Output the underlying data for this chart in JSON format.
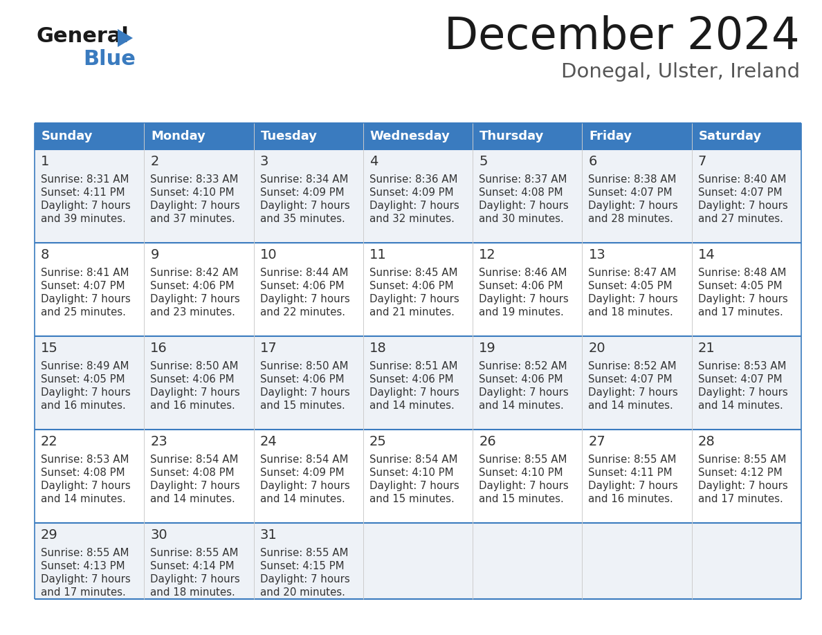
{
  "title": "December 2024",
  "subtitle": "Donegal, Ulster, Ireland",
  "header_color": "#3a7bbf",
  "header_text_color": "#ffffff",
  "days_of_week": [
    "Sunday",
    "Monday",
    "Tuesday",
    "Wednesday",
    "Thursday",
    "Friday",
    "Saturday"
  ],
  "weeks": [
    [
      {
        "day": 1,
        "sunrise": "8:31 AM",
        "sunset": "4:11 PM",
        "daylight_hours": 7,
        "daylight_minutes": 39
      },
      {
        "day": 2,
        "sunrise": "8:33 AM",
        "sunset": "4:10 PM",
        "daylight_hours": 7,
        "daylight_minutes": 37
      },
      {
        "day": 3,
        "sunrise": "8:34 AM",
        "sunset": "4:09 PM",
        "daylight_hours": 7,
        "daylight_minutes": 35
      },
      {
        "day": 4,
        "sunrise": "8:36 AM",
        "sunset": "4:09 PM",
        "daylight_hours": 7,
        "daylight_minutes": 32
      },
      {
        "day": 5,
        "sunrise": "8:37 AM",
        "sunset": "4:08 PM",
        "daylight_hours": 7,
        "daylight_minutes": 30
      },
      {
        "day": 6,
        "sunrise": "8:38 AM",
        "sunset": "4:07 PM",
        "daylight_hours": 7,
        "daylight_minutes": 28
      },
      {
        "day": 7,
        "sunrise": "8:40 AM",
        "sunset": "4:07 PM",
        "daylight_hours": 7,
        "daylight_minutes": 27
      }
    ],
    [
      {
        "day": 8,
        "sunrise": "8:41 AM",
        "sunset": "4:07 PM",
        "daylight_hours": 7,
        "daylight_minutes": 25
      },
      {
        "day": 9,
        "sunrise": "8:42 AM",
        "sunset": "4:06 PM",
        "daylight_hours": 7,
        "daylight_minutes": 23
      },
      {
        "day": 10,
        "sunrise": "8:44 AM",
        "sunset": "4:06 PM",
        "daylight_hours": 7,
        "daylight_minutes": 22
      },
      {
        "day": 11,
        "sunrise": "8:45 AM",
        "sunset": "4:06 PM",
        "daylight_hours": 7,
        "daylight_minutes": 21
      },
      {
        "day": 12,
        "sunrise": "8:46 AM",
        "sunset": "4:06 PM",
        "daylight_hours": 7,
        "daylight_minutes": 19
      },
      {
        "day": 13,
        "sunrise": "8:47 AM",
        "sunset": "4:05 PM",
        "daylight_hours": 7,
        "daylight_minutes": 18
      },
      {
        "day": 14,
        "sunrise": "8:48 AM",
        "sunset": "4:05 PM",
        "daylight_hours": 7,
        "daylight_minutes": 17
      }
    ],
    [
      {
        "day": 15,
        "sunrise": "8:49 AM",
        "sunset": "4:05 PM",
        "daylight_hours": 7,
        "daylight_minutes": 16
      },
      {
        "day": 16,
        "sunrise": "8:50 AM",
        "sunset": "4:06 PM",
        "daylight_hours": 7,
        "daylight_minutes": 16
      },
      {
        "day": 17,
        "sunrise": "8:50 AM",
        "sunset": "4:06 PM",
        "daylight_hours": 7,
        "daylight_minutes": 15
      },
      {
        "day": 18,
        "sunrise": "8:51 AM",
        "sunset": "4:06 PM",
        "daylight_hours": 7,
        "daylight_minutes": 14
      },
      {
        "day": 19,
        "sunrise": "8:52 AM",
        "sunset": "4:06 PM",
        "daylight_hours": 7,
        "daylight_minutes": 14
      },
      {
        "day": 20,
        "sunrise": "8:52 AM",
        "sunset": "4:07 PM",
        "daylight_hours": 7,
        "daylight_minutes": 14
      },
      {
        "day": 21,
        "sunrise": "8:53 AM",
        "sunset": "4:07 PM",
        "daylight_hours": 7,
        "daylight_minutes": 14
      }
    ],
    [
      {
        "day": 22,
        "sunrise": "8:53 AM",
        "sunset": "4:08 PM",
        "daylight_hours": 7,
        "daylight_minutes": 14
      },
      {
        "day": 23,
        "sunrise": "8:54 AM",
        "sunset": "4:08 PM",
        "daylight_hours": 7,
        "daylight_minutes": 14
      },
      {
        "day": 24,
        "sunrise": "8:54 AM",
        "sunset": "4:09 PM",
        "daylight_hours": 7,
        "daylight_minutes": 14
      },
      {
        "day": 25,
        "sunrise": "8:54 AM",
        "sunset": "4:10 PM",
        "daylight_hours": 7,
        "daylight_minutes": 15
      },
      {
        "day": 26,
        "sunrise": "8:55 AM",
        "sunset": "4:10 PM",
        "daylight_hours": 7,
        "daylight_minutes": 15
      },
      {
        "day": 27,
        "sunrise": "8:55 AM",
        "sunset": "4:11 PM",
        "daylight_hours": 7,
        "daylight_minutes": 16
      },
      {
        "day": 28,
        "sunrise": "8:55 AM",
        "sunset": "4:12 PM",
        "daylight_hours": 7,
        "daylight_minutes": 17
      }
    ],
    [
      {
        "day": 29,
        "sunrise": "8:55 AM",
        "sunset": "4:13 PM",
        "daylight_hours": 7,
        "daylight_minutes": 17
      },
      {
        "day": 30,
        "sunrise": "8:55 AM",
        "sunset": "4:14 PM",
        "daylight_hours": 7,
        "daylight_minutes": 18
      },
      {
        "day": 31,
        "sunrise": "8:55 AM",
        "sunset": "4:15 PM",
        "daylight_hours": 7,
        "daylight_minutes": 20
      },
      null,
      null,
      null,
      null
    ]
  ],
  "logo_general_color": "#1a1a1a",
  "logo_blue_color": "#3a7bbf",
  "logo_triangle_color": "#3a7bbf",
  "row_bg_odd": "#eef2f7",
  "row_bg_even": "#ffffff",
  "cell_text_color": "#333333",
  "divider_color": "#3a7bbf",
  "title_color": "#1a1a1a",
  "subtitle_color": "#555555",
  "fig_width": 11.88,
  "fig_height": 9.18,
  "dpi": 100
}
